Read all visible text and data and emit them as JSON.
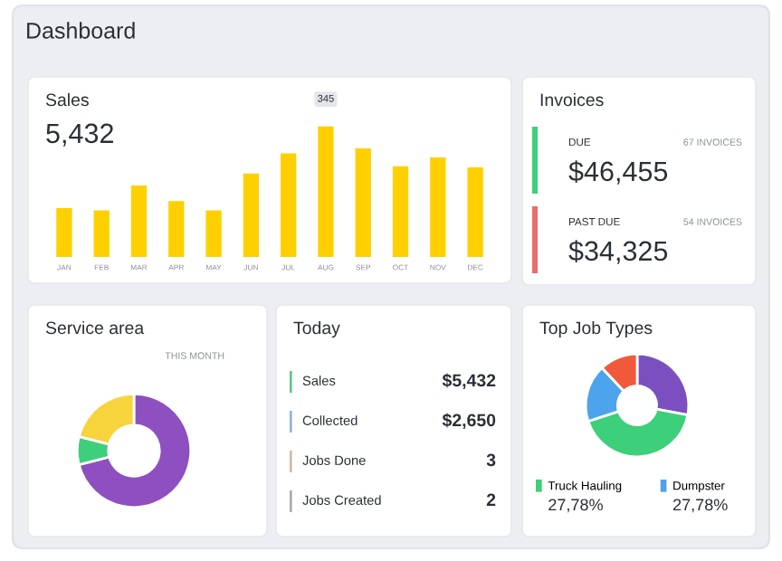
{
  "chart_data": [
    {
      "type": "other",
      "title": "Dashboard"
    },
    {
      "type": "bar",
      "title": "Sales",
      "subtitle": "5,432",
      "categories": [
        "JAN",
        "FEB",
        "MAR",
        "APR",
        "MAY",
        "JUN",
        "JUL",
        "AUG",
        "SEP",
        "OCT",
        "NOV",
        "DEC"
      ],
      "values": [
        129,
        123,
        189,
        148,
        123,
        221,
        274,
        345,
        287,
        240,
        263,
        237
      ],
      "value_labels": [
        null,
        null,
        null,
        null,
        null,
        null,
        null,
        "345",
        null,
        null,
        null,
        null
      ],
      "color": "#ffd000"
    },
    {
      "type": "other",
      "title": "Invoices",
      "annotations": [
        "DUE",
        "67 INVOICES",
        "$46,455",
        "PAST DUE",
        "54 INVOICES",
        "$34,325"
      ],
      "colors": [
        "#3ecf7a",
        "#ef6a6a"
      ]
    },
    {
      "type": "donut",
      "title": "Service area",
      "subtitle": "THIS MONTH",
      "categories": [
        null,
        null,
        null
      ],
      "values": [
        71,
        8,
        21
      ],
      "colors": [
        "#8e4fc0",
        "#3ecf7a",
        "#f7d33c"
      ]
    },
    {
      "type": "other",
      "title": "Today",
      "annotations": [
        "Sales",
        "$5,432",
        "Collected",
        "$2,650",
        "Jobs Done",
        "3",
        "Jobs Created",
        "2"
      ],
      "colors": [
        "#5cc48a",
        "#8fb3d9",
        "#d4b8a0",
        "#a8a8a8"
      ]
    },
    {
      "type": "donut",
      "title": "Top Job Types",
      "categories": [
        null,
        "Truck Hauling",
        "Dumpster",
        null
      ],
      "values": [
        28,
        42,
        18,
        12
      ],
      "colors": [
        "#7b4fbf",
        "#3ecf7a",
        "#4da3ec",
        "#f05a3a"
      ],
      "legend": "bottom",
      "annotations": [
        "27,78%",
        "27,78%"
      ]
    }
  ]
}
